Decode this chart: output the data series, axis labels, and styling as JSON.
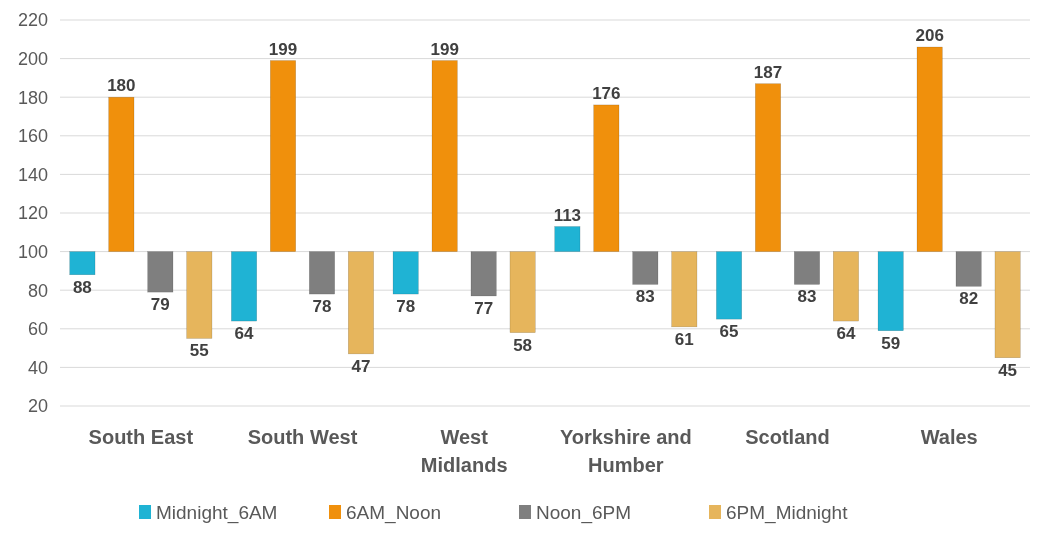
{
  "chart_data": {
    "type": "bar",
    "categories": [
      "South East",
      "South West",
      "West Midlands",
      "Yorkshire and Humber",
      "Scotland",
      "Wales"
    ],
    "series": [
      {
        "name": "Midnight_6AM",
        "color": "#1fb3d4",
        "base": [
          100,
          100,
          100,
          100,
          100,
          100
        ],
        "values": [
          -12,
          -36,
          -22,
          13,
          -35,
          -41
        ],
        "value_labels": [
          "88",
          "64",
          "78",
          "113",
          "65",
          "59"
        ]
      },
      {
        "name": "6AM_Noon",
        "color": "#f0900c",
        "base": [
          100,
          100,
          100,
          100,
          100,
          100
        ],
        "values": [
          80,
          99,
          99,
          76,
          87,
          106
        ],
        "value_labels": [
          "180",
          "199",
          "199",
          "176",
          "187",
          "206"
        ]
      },
      {
        "name": "Noon_6PM",
        "color": "#7f7f7f",
        "base": [
          100,
          100,
          100,
          100,
          100,
          100
        ],
        "values": [
          -21,
          -22,
          -23,
          -17,
          -17,
          -18
        ],
        "value_labels": [
          "79",
          "78",
          "77",
          "83",
          "83",
          "82"
        ]
      },
      {
        "name": "6PM_Midnight",
        "color": "#e6b55c",
        "base": [
          100,
          100,
          100,
          100,
          100,
          100
        ],
        "values": [
          -45,
          -53,
          -42,
          -39,
          -36,
          -55
        ],
        "value_labels": [
          "55",
          "47",
          "58",
          "61",
          "64",
          "45"
        ]
      }
    ],
    "ylim": [
      20,
      220
    ],
    "yticks": [
      20,
      40,
      60,
      80,
      100,
      120,
      140,
      160,
      180,
      200,
      220
    ],
    "grid": "y",
    "legend": "bottom"
  }
}
